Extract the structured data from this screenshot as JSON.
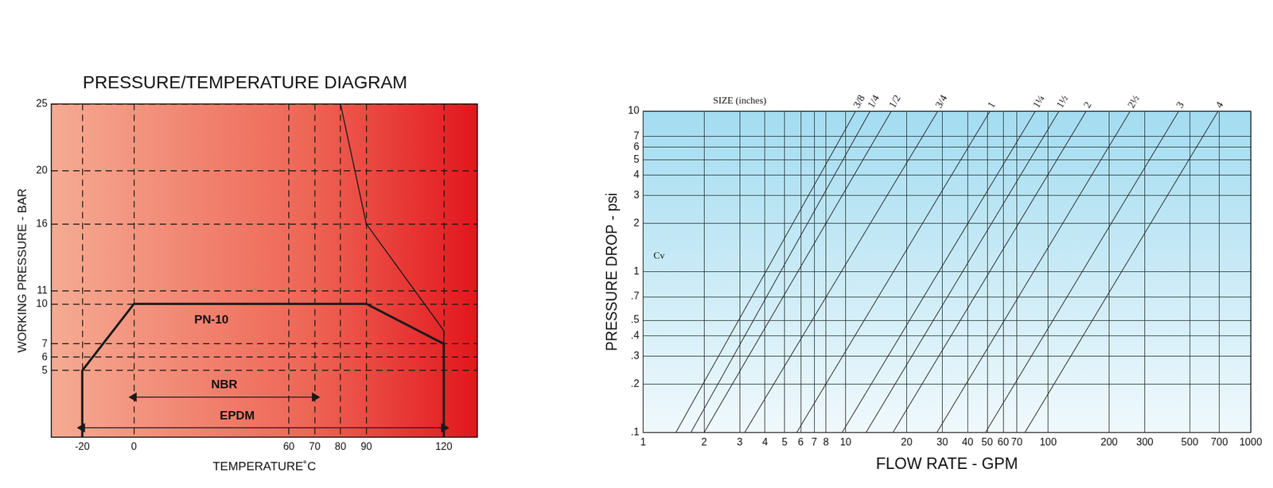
{
  "chart_data": [
    {
      "type": "line",
      "title": "PRESSURE/TEMPERATURE DIAGRAM",
      "x_label": "TEMPERATURE˚C",
      "y_label": "WORKING PRESSURE - BAR",
      "xlim": [
        -32,
        133
      ],
      "xticks": [
        -20,
        0,
        60,
        70,
        80,
        90,
        120
      ],
      "ylim": [
        0,
        25
      ],
      "yticks": [
        5,
        6,
        7,
        10,
        11,
        16,
        20,
        25
      ],
      "grid": true,
      "series": [
        {
          "x": [
            -20,
            -20,
            0,
            90,
            120,
            120
          ],
          "values": [
            0,
            5,
            10,
            10,
            7,
            0
          ],
          "color": "#1a1a1a"
        },
        {
          "x": [
            80,
            90,
            120,
            120
          ],
          "values": [
            25,
            16,
            8,
            7
          ],
          "color": "#1a1a1a"
        },
        {
          "x": [
            0,
            70
          ],
          "values": [
            3,
            3
          ],
          "color": "#1a1a1a",
          "marker": "arrow"
        },
        {
          "x": [
            -20,
            120
          ],
          "values": [
            0.7,
            0.7
          ],
          "color": "#1a1a1a",
          "marker": "arrow"
        }
      ],
      "annotations": [
        {
          "text": "PN-10",
          "x": 30,
          "y": 8.8
        },
        {
          "text": "NBR",
          "x": 35,
          "y": 3.9
        },
        {
          "text": "EPDM",
          "x": 40,
          "y": 1.6
        }
      ]
    },
    {
      "type": "line",
      "x_label": "FLOW RATE - GPM",
      "y_label": "PRESSURE DROP - psi",
      "log": true,
      "xlim": [
        1,
        1000
      ],
      "xticks": [
        1,
        2,
        3,
        4,
        5,
        6,
        7,
        8,
        10,
        20,
        30,
        40,
        50,
        60,
        70,
        100,
        200,
        300,
        500,
        700,
        1000
      ],
      "ylim": [
        0.1,
        10
      ],
      "yticks": [
        {
          "value": 0.1,
          "label": ".1"
        },
        {
          "value": 0.2,
          "label": ".2"
        },
        {
          "value": 0.3,
          "label": ".3"
        },
        {
          "value": 0.4,
          "label": ".4"
        },
        {
          "value": 0.5,
          "label": ".5"
        },
        {
          "value": 0.7,
          "label": ".7"
        },
        1,
        2,
        3,
        4,
        5,
        6,
        7,
        10
      ],
      "grid": true,
      "series": [
        {
          "name": "3/8",
          "x": [
            1.45,
            11.2
          ],
          "values": [
            0.1,
            10
          ],
          "color": "#222222"
        },
        {
          "name": "1/4",
          "x": [
            1.72,
            13.2
          ],
          "values": [
            0.1,
            10
          ],
          "color": "#222222"
        },
        {
          "name": "1/2",
          "x": [
            2.0,
            16.8
          ],
          "values": [
            0.1,
            10
          ],
          "color": "#222222"
        },
        {
          "name": "3/4",
          "x": [
            3.17,
            28.5
          ],
          "values": [
            0.1,
            10
          ],
          "color": "#222222"
        },
        {
          "name": "1",
          "x": [
            5.73,
            51.6
          ],
          "values": [
            0.1,
            10
          ],
          "color": "#222222"
        },
        {
          "name": "1¼",
          "x": [
            9.6,
            86.4
          ],
          "values": [
            0.1,
            10
          ],
          "color": "#222222"
        },
        {
          "name": "1½",
          "x": [
            12.6,
            113
          ],
          "values": [
            0.1,
            10
          ],
          "color": "#222222"
        },
        {
          "name": "2",
          "x": [
            17.1,
            154
          ],
          "values": [
            0.1,
            10
          ],
          "color": "#222222"
        },
        {
          "name": "2½",
          "x": [
            28.2,
            254
          ],
          "values": [
            0.1,
            10
          ],
          "color": "#222222"
        },
        {
          "name": "3",
          "x": [
            49,
            441
          ],
          "values": [
            0.1,
            10
          ],
          "color": "#222222"
        },
        {
          "name": "4",
          "x": [
            76.7,
            690
          ],
          "values": [
            0.1,
            10
          ],
          "color": "#222222"
        }
      ],
      "annotations": [
        {
          "text": "SIZE (inches)",
          "x": 3
        },
        {
          "text": "Cv",
          "x": 1.2,
          "y": 1.25
        }
      ]
    }
  ]
}
